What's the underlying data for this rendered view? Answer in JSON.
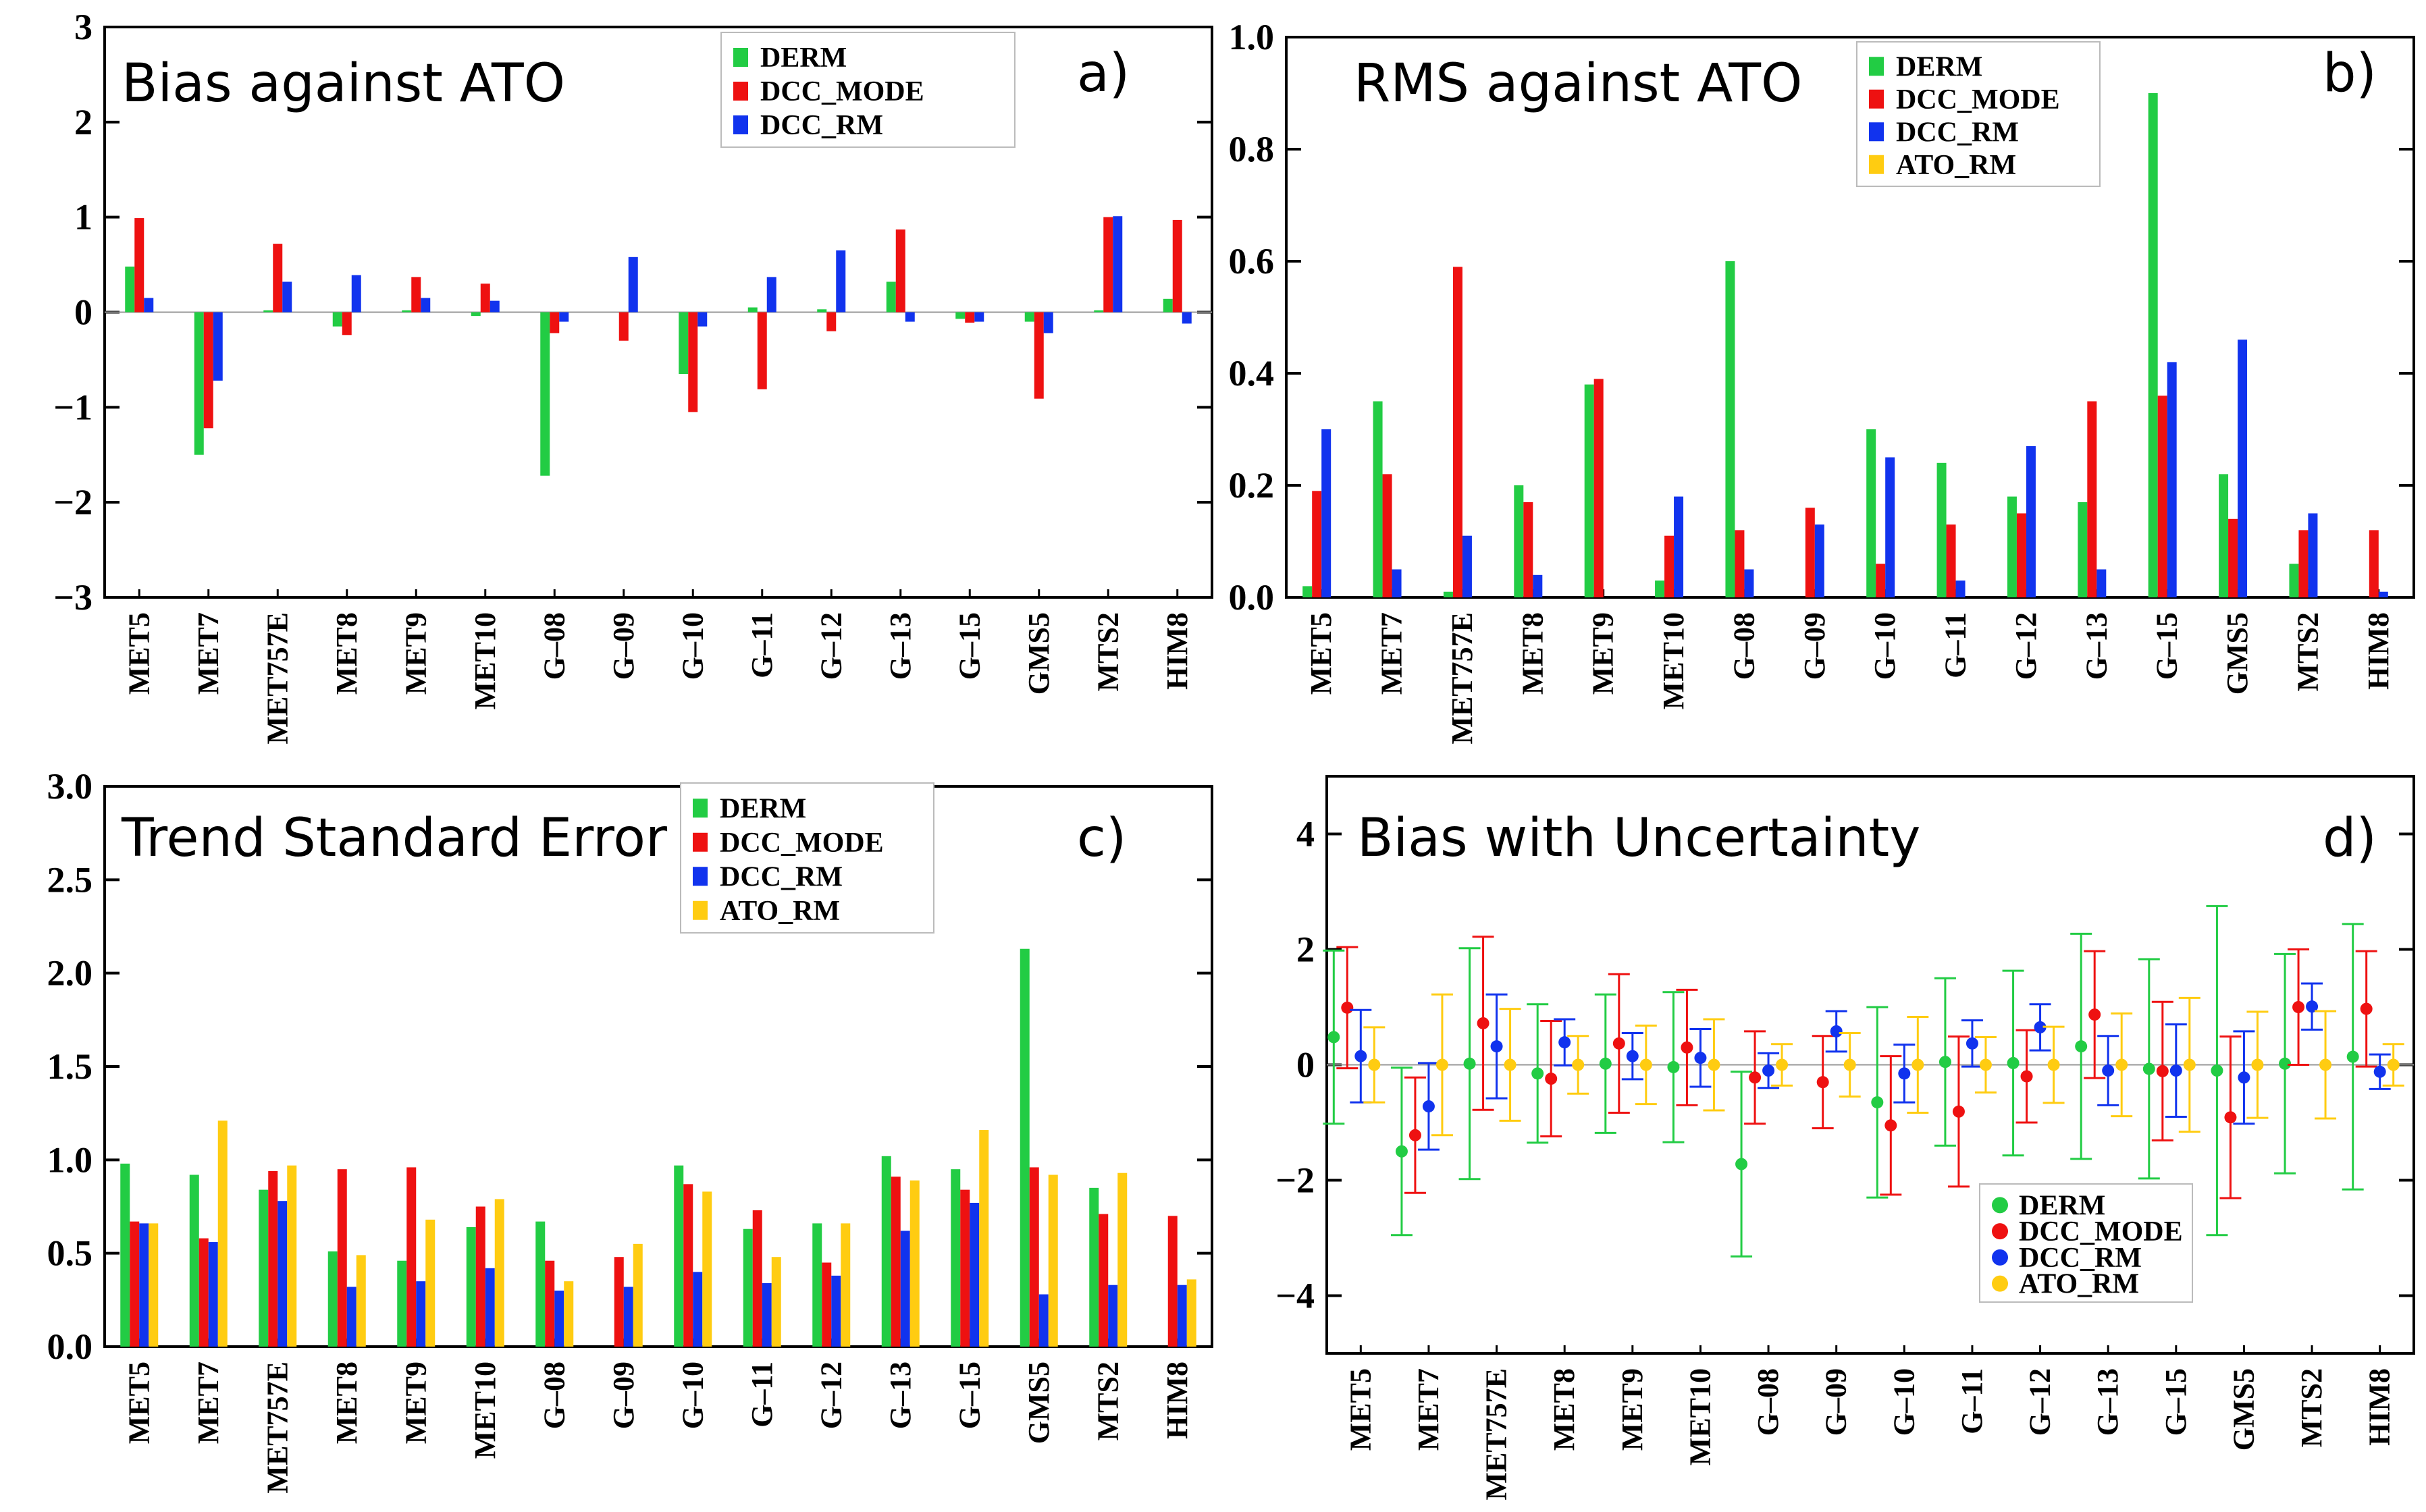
{
  "colors": {
    "DERM": "#22cc44",
    "DCC_MODE": "#ee1111",
    "DCC_RM": "#1133ee",
    "ATO_RM": "#ffcc11",
    "axis": "#000000",
    "zero_line": "#999999"
  },
  "chart_data": [
    {
      "id": "a",
      "type": "bar",
      "title": "Bias against ATO",
      "label": "a)",
      "legend_position": "top-right",
      "categories": [
        "MET5",
        "MET7",
        "MET757E",
        "MET8",
        "MET9",
        "MET10",
        "G–08",
        "G–09",
        "G–10",
        "G–11",
        "G–12",
        "G–13",
        "G–15",
        "GMS5",
        "MTS2",
        "HIM8"
      ],
      "ylim": [
        -3,
        3
      ],
      "yticks": [
        -3,
        -2,
        -1,
        0,
        1,
        2,
        3
      ],
      "ytick_labels": [
        "−3",
        "−2",
        "−1",
        "0",
        "1",
        "2",
        "3"
      ],
      "series": [
        {
          "name": "DERM",
          "values": [
            0.48,
            -1.5,
            0.02,
            -0.15,
            0.02,
            -0.04,
            -1.72,
            0.0,
            -0.65,
            0.05,
            0.03,
            0.32,
            -0.07,
            -0.1,
            0.02,
            0.14
          ]
        },
        {
          "name": "DCC_MODE",
          "values": [
            0.99,
            -1.22,
            0.72,
            -0.24,
            0.37,
            0.3,
            -0.22,
            -0.3,
            -1.05,
            -0.81,
            -0.2,
            0.87,
            -0.11,
            -0.91,
            1.0,
            0.97
          ]
        },
        {
          "name": "DCC_RM",
          "values": [
            0.15,
            -0.72,
            0.32,
            0.39,
            0.15,
            0.12,
            -0.1,
            0.58,
            -0.15,
            0.37,
            0.65,
            -0.1,
            -0.1,
            -0.22,
            1.01,
            -0.12
          ]
        }
      ]
    },
    {
      "id": "b",
      "type": "bar",
      "title": "RMS against ATO",
      "label": "b)",
      "legend_position": "top-right",
      "categories": [
        "MET5",
        "MET7",
        "MET757E",
        "MET8",
        "MET9",
        "MET10",
        "G–08",
        "G–09",
        "G–10",
        "G–11",
        "G–12",
        "G–13",
        "G–15",
        "GMS5",
        "MTS2",
        "HIM8"
      ],
      "ylim": [
        0,
        1.0
      ],
      "yticks": [
        0,
        0.2,
        0.4,
        0.6,
        0.8,
        1.0
      ],
      "ytick_labels": [
        "0.0",
        "0.2",
        "0.4",
        "0.6",
        "0.8",
        "1.0"
      ],
      "series": [
        {
          "name": "DERM",
          "values": [
            0.02,
            0.35,
            0.01,
            0.2,
            0.38,
            0.03,
            0.6,
            0.0,
            0.3,
            0.24,
            0.18,
            0.17,
            0.9,
            0.22,
            0.06,
            0.0
          ]
        },
        {
          "name": "DCC_MODE",
          "values": [
            0.19,
            0.22,
            0.59,
            0.17,
            0.39,
            0.11,
            0.12,
            0.16,
            0.06,
            0.13,
            0.15,
            0.35,
            0.36,
            0.14,
            0.12,
            0.12
          ]
        },
        {
          "name": "DCC_RM",
          "values": [
            0.3,
            0.05,
            0.11,
            0.04,
            0.0,
            0.18,
            0.05,
            0.13,
            0.25,
            0.03,
            0.27,
            0.05,
            0.42,
            0.46,
            0.15,
            0.01
          ]
        },
        {
          "name": "ATO_RM",
          "values": [
            0,
            0,
            0,
            0,
            0,
            0,
            0,
            0,
            0,
            0,
            0,
            0,
            0,
            0,
            0,
            0
          ]
        }
      ]
    },
    {
      "id": "c",
      "type": "bar",
      "title": "Trend Standard Error",
      "label": "c)",
      "legend_position": "top-right",
      "categories": [
        "MET5",
        "MET7",
        "MET757E",
        "MET8",
        "MET9",
        "MET10",
        "G–08",
        "G–09",
        "G–10",
        "G–11",
        "G–12",
        "G–13",
        "G–15",
        "GMS5",
        "MTS2",
        "HIM8"
      ],
      "ylim": [
        0,
        3.0
      ],
      "yticks": [
        0,
        0.5,
        1.0,
        1.5,
        2.0,
        2.5,
        3.0
      ],
      "ytick_labels": [
        "0.0",
        "0.5",
        "1.0",
        "1.5",
        "2.0",
        "2.5",
        "3.0"
      ],
      "series": [
        {
          "name": "DERM",
          "values": [
            0.98,
            0.92,
            0.84,
            0.51,
            0.46,
            0.64,
            0.67,
            0.0,
            0.97,
            0.63,
            0.66,
            1.02,
            0.95,
            2.13,
            0.85,
            0.0
          ]
        },
        {
          "name": "DCC_MODE",
          "values": [
            0.67,
            0.58,
            0.94,
            0.95,
            0.96,
            0.75,
            0.46,
            0.48,
            0.87,
            0.73,
            0.45,
            0.91,
            0.84,
            0.96,
            0.71,
            0.7
          ]
        },
        {
          "name": "DCC_RM",
          "values": [
            0.66,
            0.56,
            0.78,
            0.32,
            0.35,
            0.42,
            0.3,
            0.32,
            0.4,
            0.34,
            0.38,
            0.62,
            0.77,
            0.28,
            0.33,
            0.33
          ]
        },
        {
          "name": "ATO_RM",
          "values": [
            0.66,
            1.21,
            0.97,
            0.49,
            0.68,
            0.79,
            0.35,
            0.55,
            0.83,
            0.48,
            0.66,
            0.89,
            1.16,
            0.92,
            0.93,
            0.36
          ]
        }
      ]
    },
    {
      "id": "d",
      "type": "scatter",
      "title": "Bias with Uncertainty",
      "label": "d)",
      "legend_position": "bottom-right",
      "categories": [
        "MET5",
        "MET7",
        "MET757E",
        "MET8",
        "MET9",
        "MET10",
        "G–08",
        "G–09",
        "G–10",
        "G–11",
        "G–12",
        "G–13",
        "G–15",
        "GMS5",
        "MTS2",
        "HIM8"
      ],
      "ylim": [
        -5,
        5
      ],
      "yticks": [
        -4,
        -2,
        0,
        2,
        4
      ],
      "ytick_labels": [
        "−4",
        "−2",
        "0",
        "2",
        "4"
      ],
      "series": [
        {
          "name": "DERM",
          "values": [
            0.48,
            -1.5,
            0.02,
            -0.15,
            0.02,
            -0.04,
            -1.72,
            null,
            -0.65,
            0.05,
            0.03,
            0.32,
            -0.07,
            -0.1,
            0.02,
            0.14
          ],
          "errors": [
            1.5,
            1.45,
            2.0,
            1.2,
            1.2,
            1.3,
            1.6,
            null,
            1.65,
            1.45,
            1.6,
            1.95,
            1.9,
            2.85,
            1.9,
            2.3
          ]
        },
        {
          "name": "DCC_MODE",
          "values": [
            0.99,
            -1.22,
            0.72,
            -0.24,
            0.37,
            0.3,
            -0.22,
            -0.3,
            -1.05,
            -0.81,
            -0.2,
            0.87,
            -0.11,
            -0.91,
            1.0,
            0.97
          ],
          "errors": [
            1.05,
            1.0,
            1.5,
            1.0,
            1.2,
            1.0,
            0.8,
            0.8,
            1.2,
            1.3,
            0.8,
            1.1,
            1.2,
            1.4,
            1.0,
            1.0
          ]
        },
        {
          "name": "DCC_RM",
          "values": [
            0.15,
            -0.72,
            0.32,
            0.39,
            0.15,
            0.12,
            -0.1,
            0.58,
            -0.15,
            0.37,
            0.65,
            -0.1,
            -0.1,
            -0.22,
            1.01,
            -0.12
          ],
          "errors": [
            0.8,
            0.75,
            0.9,
            0.4,
            0.4,
            0.5,
            0.3,
            0.35,
            0.5,
            0.4,
            0.4,
            0.6,
            0.8,
            0.8,
            0.4,
            0.3
          ]
        },
        {
          "name": "ATO_RM",
          "values": [
            0,
            0,
            0,
            0,
            0,
            0,
            0,
            0,
            0,
            0,
            0,
            0,
            0,
            0,
            0,
            0
          ],
          "errors": [
            0.65,
            1.22,
            0.97,
            0.5,
            0.68,
            0.79,
            0.36,
            0.55,
            0.83,
            0.48,
            0.66,
            0.89,
            1.16,
            0.92,
            0.93,
            0.36
          ]
        }
      ]
    }
  ]
}
